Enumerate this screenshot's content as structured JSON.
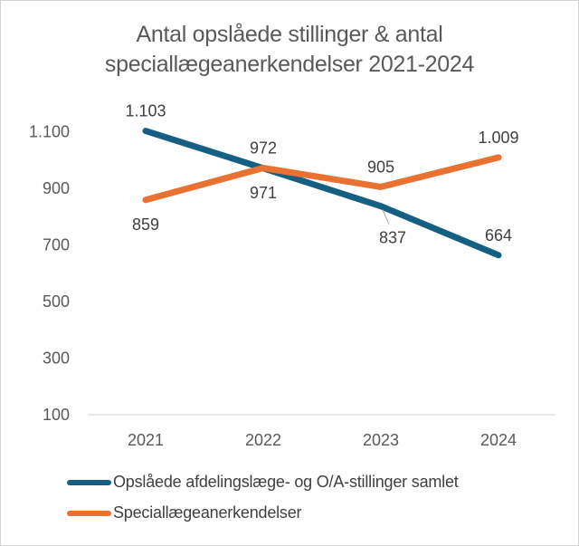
{
  "chart_data": {
    "type": "line",
    "title": "Antal opslåede stillinger & antal speciallægeanerkendelser 2021-2024",
    "categories": [
      "2021",
      "2022",
      "2023",
      "2024"
    ],
    "series": [
      {
        "name": "Opslåede afdelingslæge- og O/A-stillinger samlet",
        "color": "#156082",
        "values": [
          1103,
          971,
          837,
          664
        ],
        "data_labels": [
          "1.103",
          "971",
          "837",
          "664"
        ],
        "label_positions": [
          "above",
          "below",
          "below-leader",
          "above"
        ]
      },
      {
        "name": "Speciallægeanerkendelser",
        "color": "#E97132",
        "values": [
          859,
          972,
          905,
          1009
        ],
        "data_labels": [
          "859",
          "972",
          "905",
          "1.009"
        ],
        "label_positions": [
          "below",
          "above",
          "above",
          "above"
        ]
      }
    ],
    "y_axis": {
      "min": 100,
      "max": 1100,
      "step": 200,
      "tick_labels": [
        "100",
        "300",
        "500",
        "700",
        "900",
        "1.100"
      ]
    },
    "x_axis": {
      "tick_labels": [
        "2021",
        "2022",
        "2023",
        "2024"
      ]
    },
    "grid": false,
    "legend_position": "bottom-left",
    "colors": {
      "title_text": "#595959",
      "axis_text": "#595959",
      "data_label_text": "#404040",
      "axis_line": "#d9d9d9",
      "leader_line": "#a6a6a6",
      "background": "#ffffff",
      "border": "#d4d4d4"
    }
  }
}
